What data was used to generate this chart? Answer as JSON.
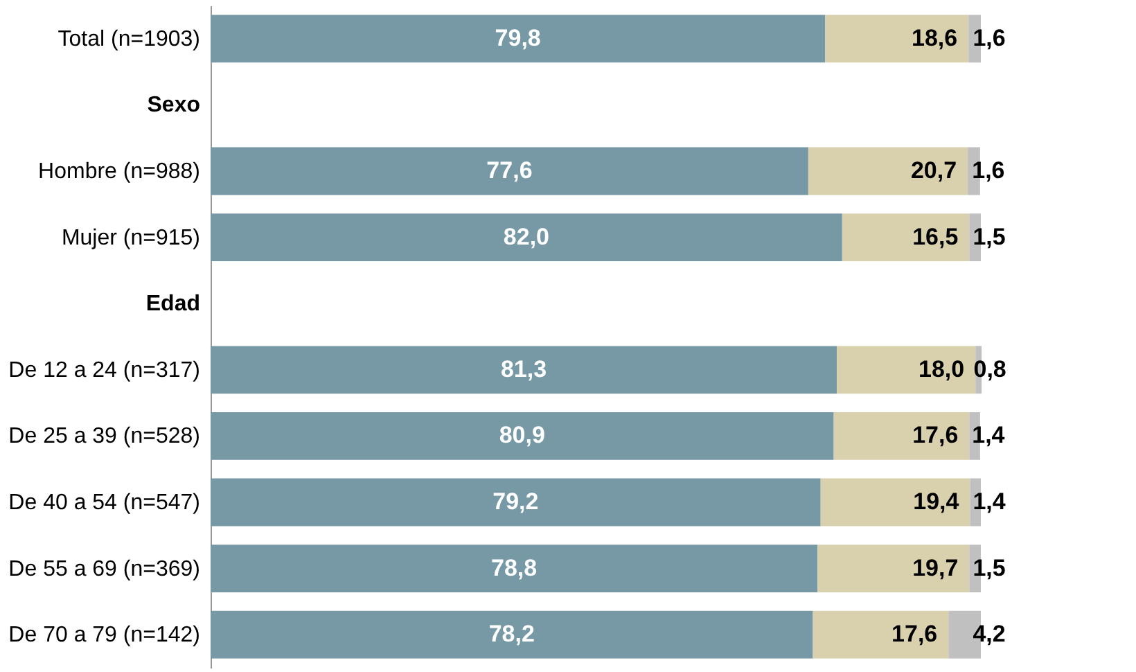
{
  "chart_data": {
    "type": "bar",
    "orientation": "horizontal",
    "stacked": true,
    "xlim": [
      0,
      100
    ],
    "tick_labels": "y",
    "categories": [
      "Total (n=1903)",
      "Sexo",
      "Hombre (n=988)",
      "Mujer (n=915)",
      "Edad",
      "De 12 a 24 (n=317)",
      "De 25 a 39 (n=528)",
      "De 40 a 54 (n=547)",
      "De 55 a 69 (n=369)",
      "De 70 a 79 (n=142)"
    ],
    "series": [
      {
        "color": "#7799a5",
        "values": [
          79.8,
          null,
          77.6,
          82.0,
          null,
          81.3,
          80.9,
          79.2,
          78.8,
          78.2
        ],
        "value_labels": [
          "79,8",
          null,
          "77,6",
          "82,0",
          null,
          "81,3",
          "80,9",
          "79,2",
          "78,8",
          "78,2"
        ]
      },
      {
        "color": "#d9d1ae",
        "values": [
          18.6,
          null,
          20.7,
          16.5,
          null,
          18.0,
          17.6,
          19.4,
          19.7,
          17.6
        ],
        "value_labels": [
          "18,6",
          null,
          "20,7",
          "16,5",
          null,
          "18,0",
          "17,6",
          "19,4",
          "19,7",
          "17,6"
        ]
      },
      {
        "color": "#c0c0c0",
        "values": [
          1.6,
          null,
          1.6,
          1.5,
          null,
          0.8,
          1.4,
          1.4,
          1.5,
          4.2
        ],
        "value_labels": [
          "1,6",
          null,
          "1,6",
          "1,5",
          null,
          "0,8",
          "1,4",
          "1,4",
          "1,5",
          "4,2"
        ]
      }
    ]
  }
}
